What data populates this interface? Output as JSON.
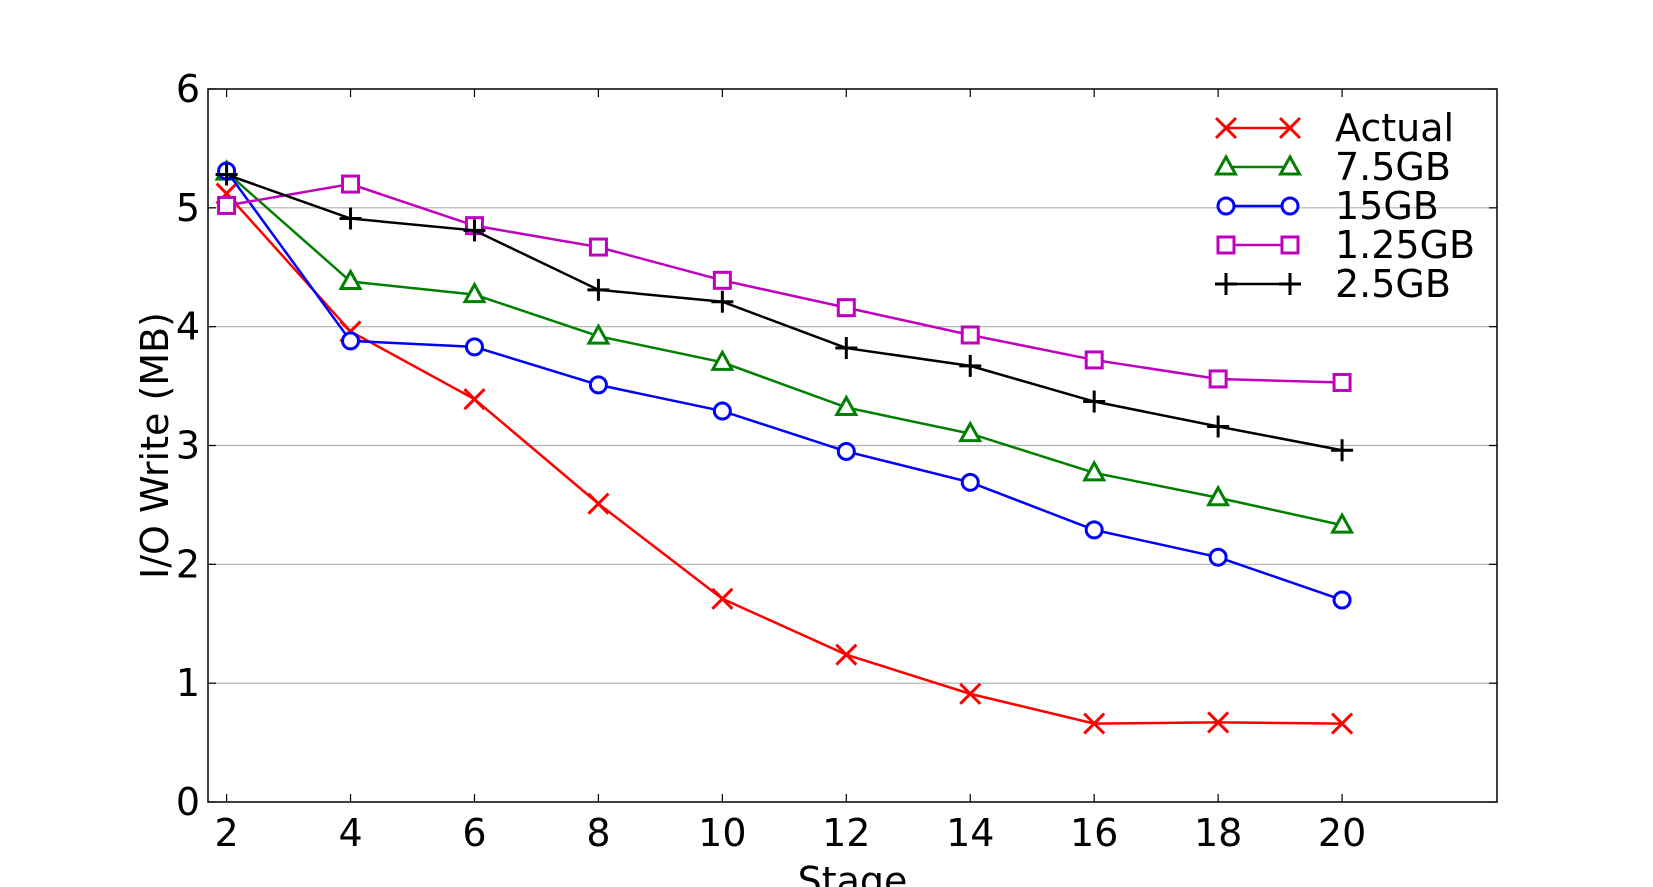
{
  "chart_data": {
    "type": "line",
    "title": "",
    "xlabel": "Stage",
    "ylabel": "I/O Write (MB)",
    "xlim": [
      1.7,
      22.5
    ],
    "ylim": [
      0,
      6
    ],
    "x_ticks": [
      "2",
      "4",
      "6",
      "8",
      "10",
      "12",
      "14",
      "16",
      "18",
      "20"
    ],
    "y_ticks": [
      "0",
      "1",
      "2",
      "3",
      "4",
      "5",
      "6"
    ],
    "grid": "horizontal",
    "legend_position": "top-right",
    "x": [
      2,
      4,
      6,
      8,
      10,
      12,
      14,
      16,
      18,
      20
    ],
    "series": [
      {
        "name": "Actual",
        "color": "#ff0000",
        "marker": "x",
        "values": [
          5.12,
          3.96,
          3.39,
          2.51,
          1.71,
          1.24,
          0.91,
          0.66,
          0.67,
          0.66
        ]
      },
      {
        "name": "7.5GB",
        "color": "#008000",
        "marker": "triangle",
        "values": [
          5.3,
          4.38,
          4.27,
          3.92,
          3.7,
          3.32,
          3.1,
          2.77,
          2.56,
          2.33
        ]
      },
      {
        "name": "15GB",
        "color": "#0000ff",
        "marker": "circle",
        "values": [
          5.31,
          3.88,
          3.83,
          3.51,
          3.29,
          2.95,
          2.69,
          2.29,
          2.06,
          1.7
        ]
      },
      {
        "name": "1.25GB",
        "color": "#bf00bf",
        "marker": "square",
        "values": [
          5.02,
          5.2,
          4.85,
          4.67,
          4.39,
          4.16,
          3.93,
          3.72,
          3.56,
          3.53
        ]
      },
      {
        "name": "2.5GB",
        "color": "#000000",
        "marker": "plus",
        "values": [
          5.28,
          4.91,
          4.81,
          4.31,
          4.21,
          3.82,
          3.67,
          3.37,
          3.16,
          2.96
        ]
      }
    ]
  }
}
